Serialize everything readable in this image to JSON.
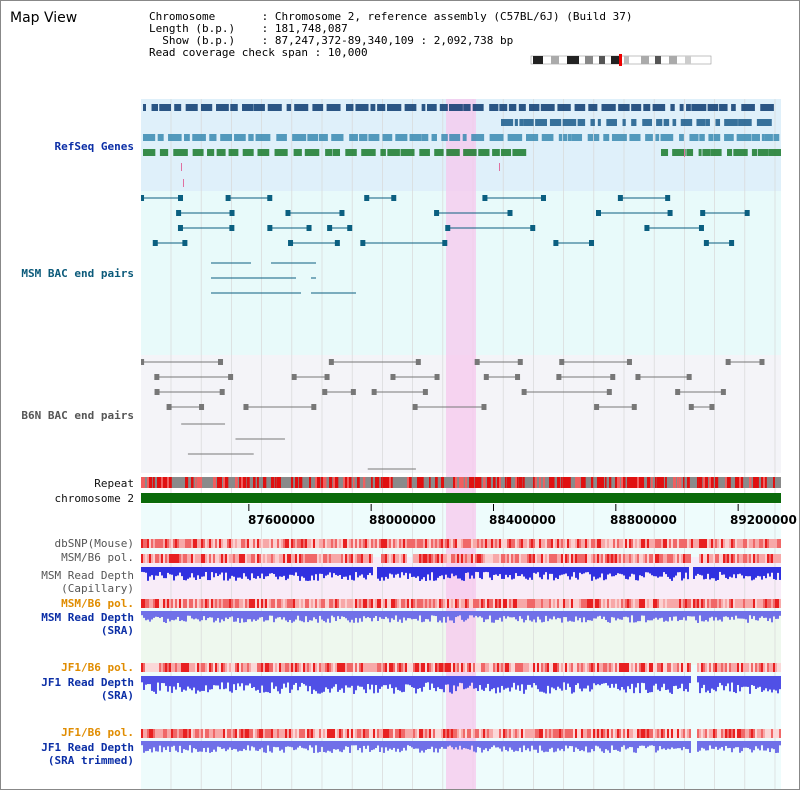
{
  "title": "Map View",
  "header": {
    "chromosome_label": "Chromosome",
    "chromosome_value": "Chromosome 2, reference assembly (C57BL/6J) (Build 37)",
    "length_label": "Length (b.p.)",
    "length_value": "181,748,087",
    "show_label": "Show (b.p.)",
    "show_value": "87,247,372-89,340,109 : 2,092,738 bp",
    "coverage_label": "Read coverage check span",
    "coverage_value": "10,000"
  },
  "tracks": {
    "refseq": "RefSeq Genes",
    "msm_bac": "MSM BAC end pairs",
    "b6n_bac": "B6N BAC end pairs",
    "repeat": "Repeat",
    "chromosome": "chromosome 2",
    "dbsnp": "dbSNP(Mouse)",
    "msm_b6_pol": "MSM/B6 pol.",
    "msm_depth_cap_1": "MSM Read Depth",
    "msm_depth_cap_2": "(Capillary)",
    "msm_b6_pol_2": "MSM/B6 pol.",
    "msm_depth_sra_1": "MSM Read Depth",
    "msm_depth_sra_2": "(SRA)",
    "jf1_b6_pol": "JF1/B6 pol.",
    "jf1_depth_sra_1": "JF1 Read Depth",
    "jf1_depth_sra_2": "(SRA)",
    "jf1_b6_pol_2": "JF1/B6 pol.",
    "jf1_depth_trim_1": "JF1 Read Depth",
    "jf1_depth_trim_2": "(SRA trimmed)"
  },
  "axis": {
    "start_bp": 87247372,
    "end_bp": 89340109,
    "ticks": [
      "87600000",
      "88000000",
      "88400000",
      "88800000",
      "89200000"
    ]
  },
  "colors": {
    "refseq_bg": "#dff0fa",
    "msm_bg": "#e8fafa",
    "b6n_bg": "#f4f4f8",
    "highlight": "#f7c8ee",
    "chromosome": "#0a6a0a",
    "snp_red": "#e83030",
    "depth_blue": "#3030e0",
    "depth_light": "#7070e8"
  }
}
